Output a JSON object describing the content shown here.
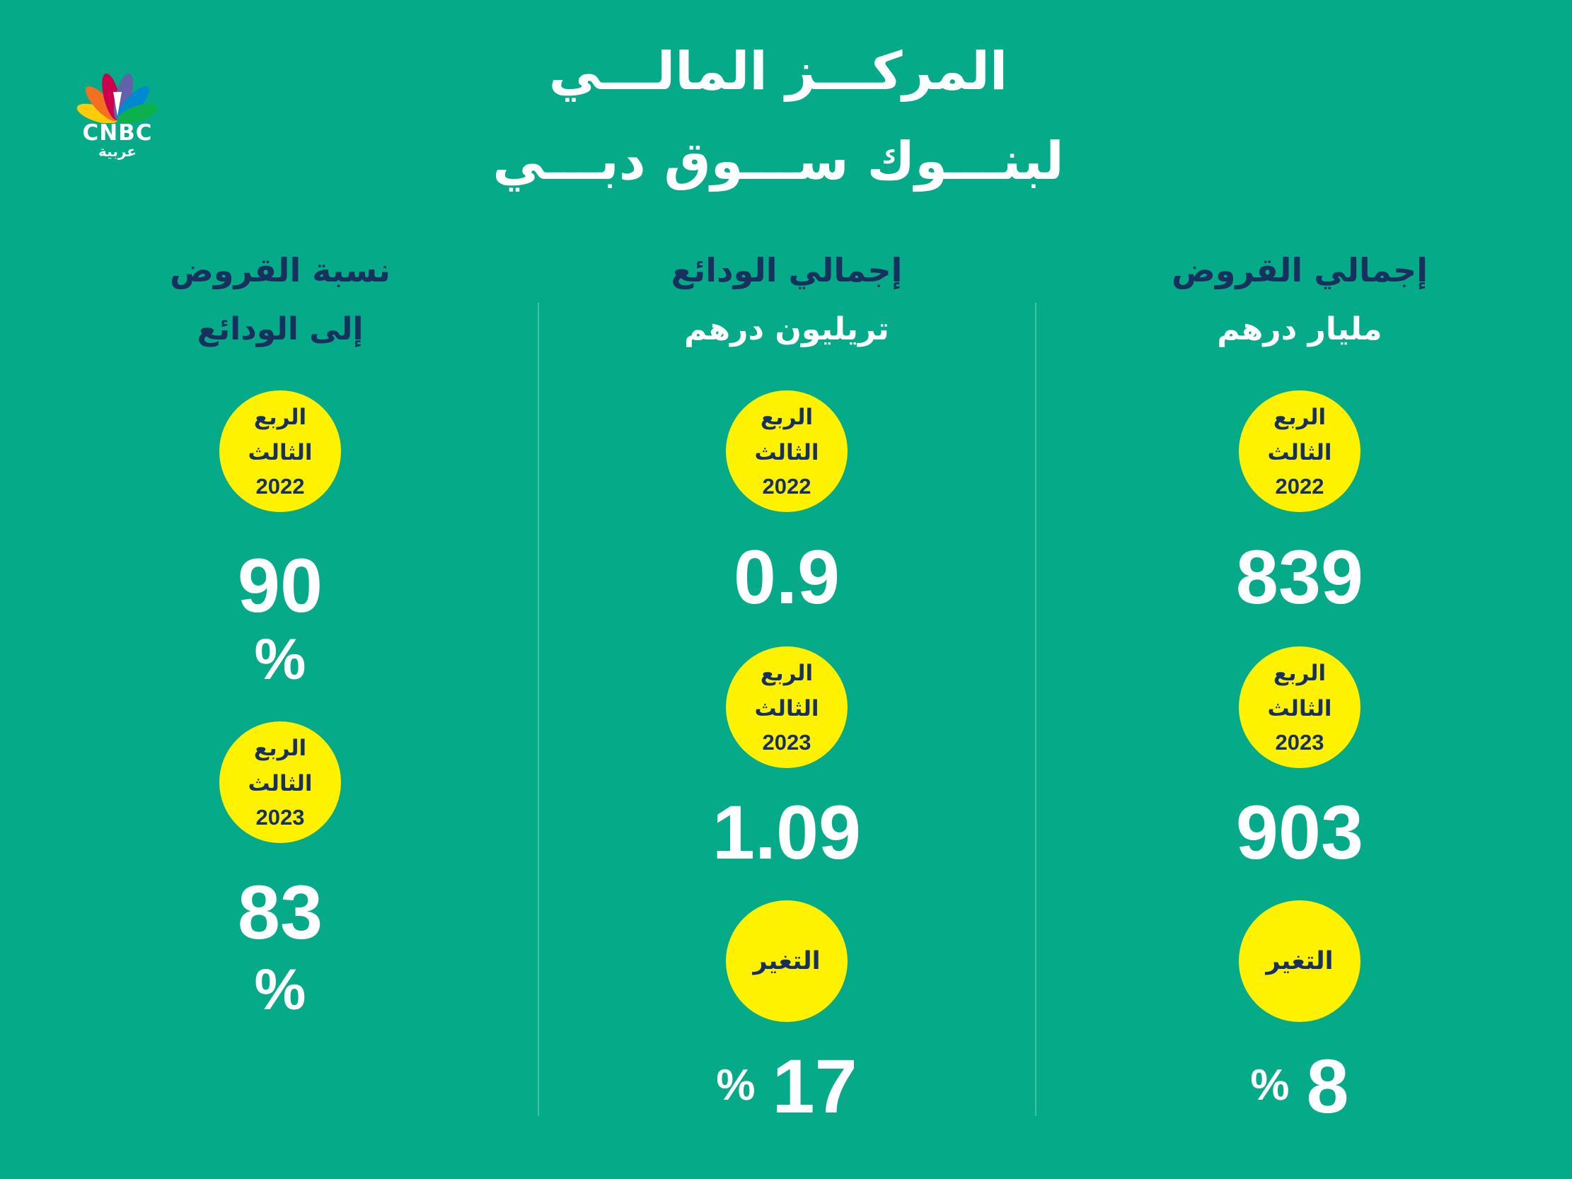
{
  "brand": {
    "logo_text": "CNBC",
    "logo_subtext": "عربية",
    "peacock_colors": [
      "#fccc0a",
      "#f37021",
      "#cc004c",
      "#6460aa",
      "#0089d0",
      "#0db14b"
    ]
  },
  "title": {
    "line1": "المركـــز المالـــي",
    "line2": "لبنـــوك ســـوق دبـــي"
  },
  "colors": {
    "background": "#05ab88",
    "badge": "#fff200",
    "navy": "#18305e",
    "white": "#ffffff"
  },
  "columns": {
    "loans": {
      "heading": "إجمالي القروض",
      "unit": "مليار درهم",
      "q3_2022": {
        "line1": "الربع",
        "line2": "الثالث",
        "year": "2022"
      },
      "value_2022": "839",
      "q3_2023": {
        "line1": "الربع",
        "line2": "الثالث",
        "year": "2023"
      },
      "value_2023": "903",
      "change_label": "التغير",
      "change_value": "8",
      "change_symbol": "%"
    },
    "deposits": {
      "heading": "إجمالي الودائع",
      "unit": "تريليون درهم",
      "q3_2022": {
        "line1": "الربع",
        "line2": "الثالث",
        "year": "2022"
      },
      "value_2022": "0.9",
      "q3_2023": {
        "line1": "الربع",
        "line2": "الثالث",
        "year": "2023"
      },
      "value_2023": "1.09",
      "change_label": "التغير",
      "change_value": "17",
      "change_symbol": "%"
    },
    "ratio": {
      "heading": "نسبة القروض",
      "subheading": "إلى الودائع",
      "q3_2022": {
        "line1": "الربع",
        "line2": "الثالث",
        "year": "2022"
      },
      "value_2022": "90",
      "value_2022_unit": "%",
      "q3_2023": {
        "line1": "الربع",
        "line2": "الثالث",
        "year": "2023"
      },
      "value_2023": "83",
      "value_2023_unit": "%"
    }
  }
}
